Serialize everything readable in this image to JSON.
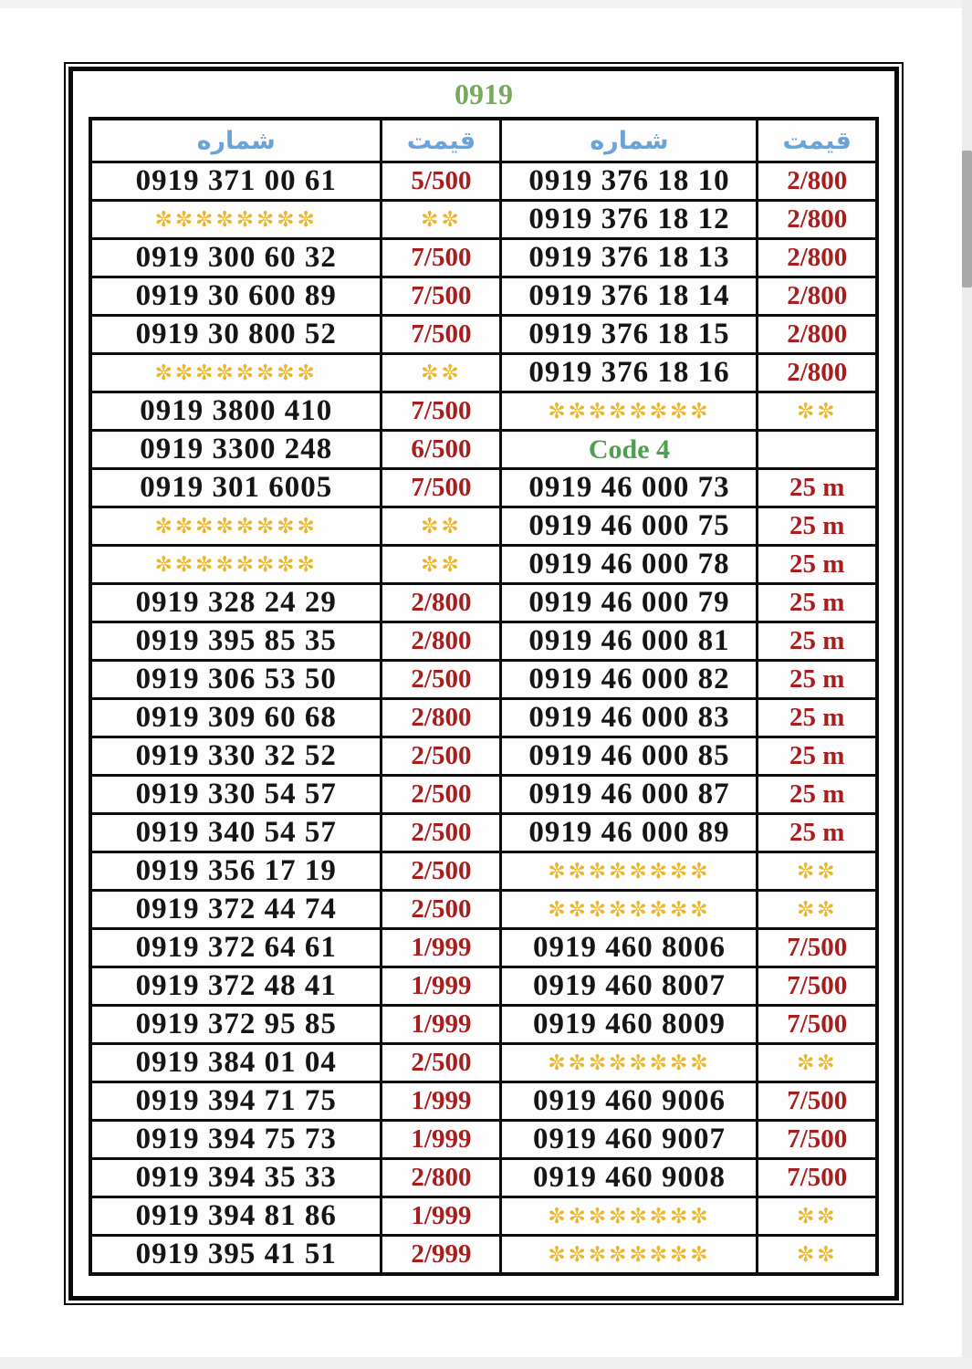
{
  "page": {
    "title": "0919"
  },
  "colors": {
    "title_green": "#76a85e",
    "code_green": "#4f9e51",
    "header_blue": "#6ba3d6",
    "number_black": "#151515",
    "price_red": "#a61e1e",
    "star_gold": "#eeb422"
  },
  "table": {
    "headers": [
      "شماره",
      "قیمت",
      "شماره",
      "قیمت"
    ],
    "code_section_label": "Code 4",
    "rows": [
      {
        "cells": [
          {
            "t": "0919 371 00 61",
            "k": "num"
          },
          {
            "t": "5/500",
            "k": "price"
          },
          {
            "t": "0919 376 18 10",
            "k": "num"
          },
          {
            "t": "2/800",
            "k": "price"
          }
        ]
      },
      {
        "cells": [
          {
            "t": "✼✼✼✼✼✼✼✼",
            "k": "stars"
          },
          {
            "t": "✼✼",
            "k": "stars"
          },
          {
            "t": "0919 376 18 12",
            "k": "num"
          },
          {
            "t": "2/800",
            "k": "price"
          }
        ]
      },
      {
        "cells": [
          {
            "t": "0919 300 60 32",
            "k": "num"
          },
          {
            "t": "7/500",
            "k": "price"
          },
          {
            "t": "0919 376 18 13",
            "k": "num"
          },
          {
            "t": "2/800",
            "k": "price"
          }
        ]
      },
      {
        "cells": [
          {
            "t": "0919 30 600 89",
            "k": "num"
          },
          {
            "t": "7/500",
            "k": "price"
          },
          {
            "t": "0919 376 18 14",
            "k": "num"
          },
          {
            "t": "2/800",
            "k": "price"
          }
        ]
      },
      {
        "cells": [
          {
            "t": "0919 30 800 52",
            "k": "num"
          },
          {
            "t": "7/500",
            "k": "price"
          },
          {
            "t": "0919 376 18 15",
            "k": "num"
          },
          {
            "t": "2/800",
            "k": "price"
          }
        ]
      },
      {
        "cells": [
          {
            "t": "✼✼✼✼✼✼✼✼",
            "k": "stars"
          },
          {
            "t": "✼✼",
            "k": "stars"
          },
          {
            "t": "0919 376 18 16",
            "k": "num"
          },
          {
            "t": "2/800",
            "k": "price"
          }
        ]
      },
      {
        "cells": [
          {
            "t": "0919 3800 410",
            "k": "num"
          },
          {
            "t": "7/500",
            "k": "price"
          },
          {
            "t": "✼✼✼✼✼✼✼✼",
            "k": "stars"
          },
          {
            "t": "✼✼",
            "k": "stars"
          }
        ]
      },
      {
        "cells": [
          {
            "t": "0919 3300 248",
            "k": "num"
          },
          {
            "t": "6/500",
            "k": "price"
          },
          {
            "t": "Code 4",
            "k": "code"
          },
          {
            "t": "",
            "k": "empty"
          }
        ]
      },
      {
        "cells": [
          {
            "t": "0919 301 6005",
            "k": "num"
          },
          {
            "t": "7/500",
            "k": "price"
          },
          {
            "t": "0919 46 000 73",
            "k": "num"
          },
          {
            "t": "25 m",
            "k": "price"
          }
        ]
      },
      {
        "cells": [
          {
            "t": "✼✼✼✼✼✼✼✼",
            "k": "stars"
          },
          {
            "t": "✼✼",
            "k": "stars"
          },
          {
            "t": "0919 46 000 75",
            "k": "num"
          },
          {
            "t": "25 m",
            "k": "price"
          }
        ]
      },
      {
        "cells": [
          {
            "t": "✼✼✼✼✼✼✼✼",
            "k": "stars"
          },
          {
            "t": "✼✼",
            "k": "stars"
          },
          {
            "t": "0919 46 000 78",
            "k": "num"
          },
          {
            "t": "25 m",
            "k": "price"
          }
        ]
      },
      {
        "cells": [
          {
            "t": "0919 328 24 29",
            "k": "num"
          },
          {
            "t": "2/800",
            "k": "price"
          },
          {
            "t": "0919 46 000 79",
            "k": "num"
          },
          {
            "t": "25 m",
            "k": "price"
          }
        ]
      },
      {
        "cells": [
          {
            "t": "0919 395 85 35",
            "k": "num"
          },
          {
            "t": "2/800",
            "k": "price"
          },
          {
            "t": "0919 46 000 81",
            "k": "num"
          },
          {
            "t": "25 m",
            "k": "price"
          }
        ]
      },
      {
        "cells": [
          {
            "t": "0919 306 53 50",
            "k": "num"
          },
          {
            "t": "2/500",
            "k": "price"
          },
          {
            "t": "0919 46 000 82",
            "k": "num"
          },
          {
            "t": "25 m",
            "k": "price"
          }
        ]
      },
      {
        "cells": [
          {
            "t": "0919 309 60 68",
            "k": "num"
          },
          {
            "t": "2/800",
            "k": "price"
          },
          {
            "t": "0919 46 000 83",
            "k": "num"
          },
          {
            "t": "25 m",
            "k": "price"
          }
        ]
      },
      {
        "cells": [
          {
            "t": "0919 330 32 52",
            "k": "num"
          },
          {
            "t": "2/500",
            "k": "price"
          },
          {
            "t": "0919 46 000 85",
            "k": "num"
          },
          {
            "t": "25 m",
            "k": "price"
          }
        ]
      },
      {
        "cells": [
          {
            "t": "0919 330 54 57",
            "k": "num"
          },
          {
            "t": "2/500",
            "k": "price"
          },
          {
            "t": "0919 46 000 87",
            "k": "num"
          },
          {
            "t": "25 m",
            "k": "price"
          }
        ]
      },
      {
        "cells": [
          {
            "t": "0919 340 54 57",
            "k": "num"
          },
          {
            "t": "2/500",
            "k": "price"
          },
          {
            "t": "0919 46 000 89",
            "k": "num"
          },
          {
            "t": "25 m",
            "k": "price"
          }
        ]
      },
      {
        "cells": [
          {
            "t": "0919 356 17 19",
            "k": "num"
          },
          {
            "t": "2/500",
            "k": "price"
          },
          {
            "t": "✼✼✼✼✼✼✼✼",
            "k": "stars"
          },
          {
            "t": "✼✼",
            "k": "stars"
          }
        ]
      },
      {
        "cells": [
          {
            "t": "0919 372 44 74",
            "k": "num"
          },
          {
            "t": "2/500",
            "k": "price"
          },
          {
            "t": "✼✼✼✼✼✼✼✼",
            "k": "stars"
          },
          {
            "t": "✼✼",
            "k": "stars"
          }
        ]
      },
      {
        "cells": [
          {
            "t": "0919 372 64 61",
            "k": "num"
          },
          {
            "t": "1/999",
            "k": "price"
          },
          {
            "t": "0919 460 8006",
            "k": "num"
          },
          {
            "t": "7/500",
            "k": "price"
          }
        ]
      },
      {
        "cells": [
          {
            "t": "0919 372 48 41",
            "k": "num"
          },
          {
            "t": "1/999",
            "k": "price"
          },
          {
            "t": "0919 460 8007",
            "k": "num"
          },
          {
            "t": "7/500",
            "k": "price"
          }
        ]
      },
      {
        "cells": [
          {
            "t": "0919 372 95 85",
            "k": "num"
          },
          {
            "t": "1/999",
            "k": "price"
          },
          {
            "t": "0919 460 8009",
            "k": "num"
          },
          {
            "t": "7/500",
            "k": "price"
          }
        ]
      },
      {
        "cells": [
          {
            "t": "0919 384 01 04",
            "k": "num"
          },
          {
            "t": "2/500",
            "k": "price"
          },
          {
            "t": "✼✼✼✼✼✼✼✼",
            "k": "stars"
          },
          {
            "t": "✼✼",
            "k": "stars"
          }
        ]
      },
      {
        "cells": [
          {
            "t": "0919 394 71 75",
            "k": "num"
          },
          {
            "t": "1/999",
            "k": "price"
          },
          {
            "t": "0919 460 9006",
            "k": "num"
          },
          {
            "t": "7/500",
            "k": "price"
          }
        ]
      },
      {
        "cells": [
          {
            "t": "0919 394 75 73",
            "k": "num"
          },
          {
            "t": "1/999",
            "k": "price"
          },
          {
            "t": "0919 460 9007",
            "k": "num"
          },
          {
            "t": "7/500",
            "k": "price"
          }
        ]
      },
      {
        "cells": [
          {
            "t": "0919 394 35 33",
            "k": "num"
          },
          {
            "t": "2/800",
            "k": "price"
          },
          {
            "t": "0919 460 9008",
            "k": "num"
          },
          {
            "t": "7/500",
            "k": "price"
          }
        ]
      },
      {
        "cells": [
          {
            "t": "0919 394 81 86",
            "k": "num"
          },
          {
            "t": "1/999",
            "k": "price"
          },
          {
            "t": "✼✼✼✼✼✼✼✼",
            "k": "stars"
          },
          {
            "t": "✼✼",
            "k": "stars"
          }
        ]
      },
      {
        "cells": [
          {
            "t": "0919 395 41 51",
            "k": "num"
          },
          {
            "t": "2/999",
            "k": "price"
          },
          {
            "t": "✼✼✼✼✼✼✼✼",
            "k": "stars"
          },
          {
            "t": "✼✼",
            "k": "stars"
          }
        ]
      }
    ]
  }
}
